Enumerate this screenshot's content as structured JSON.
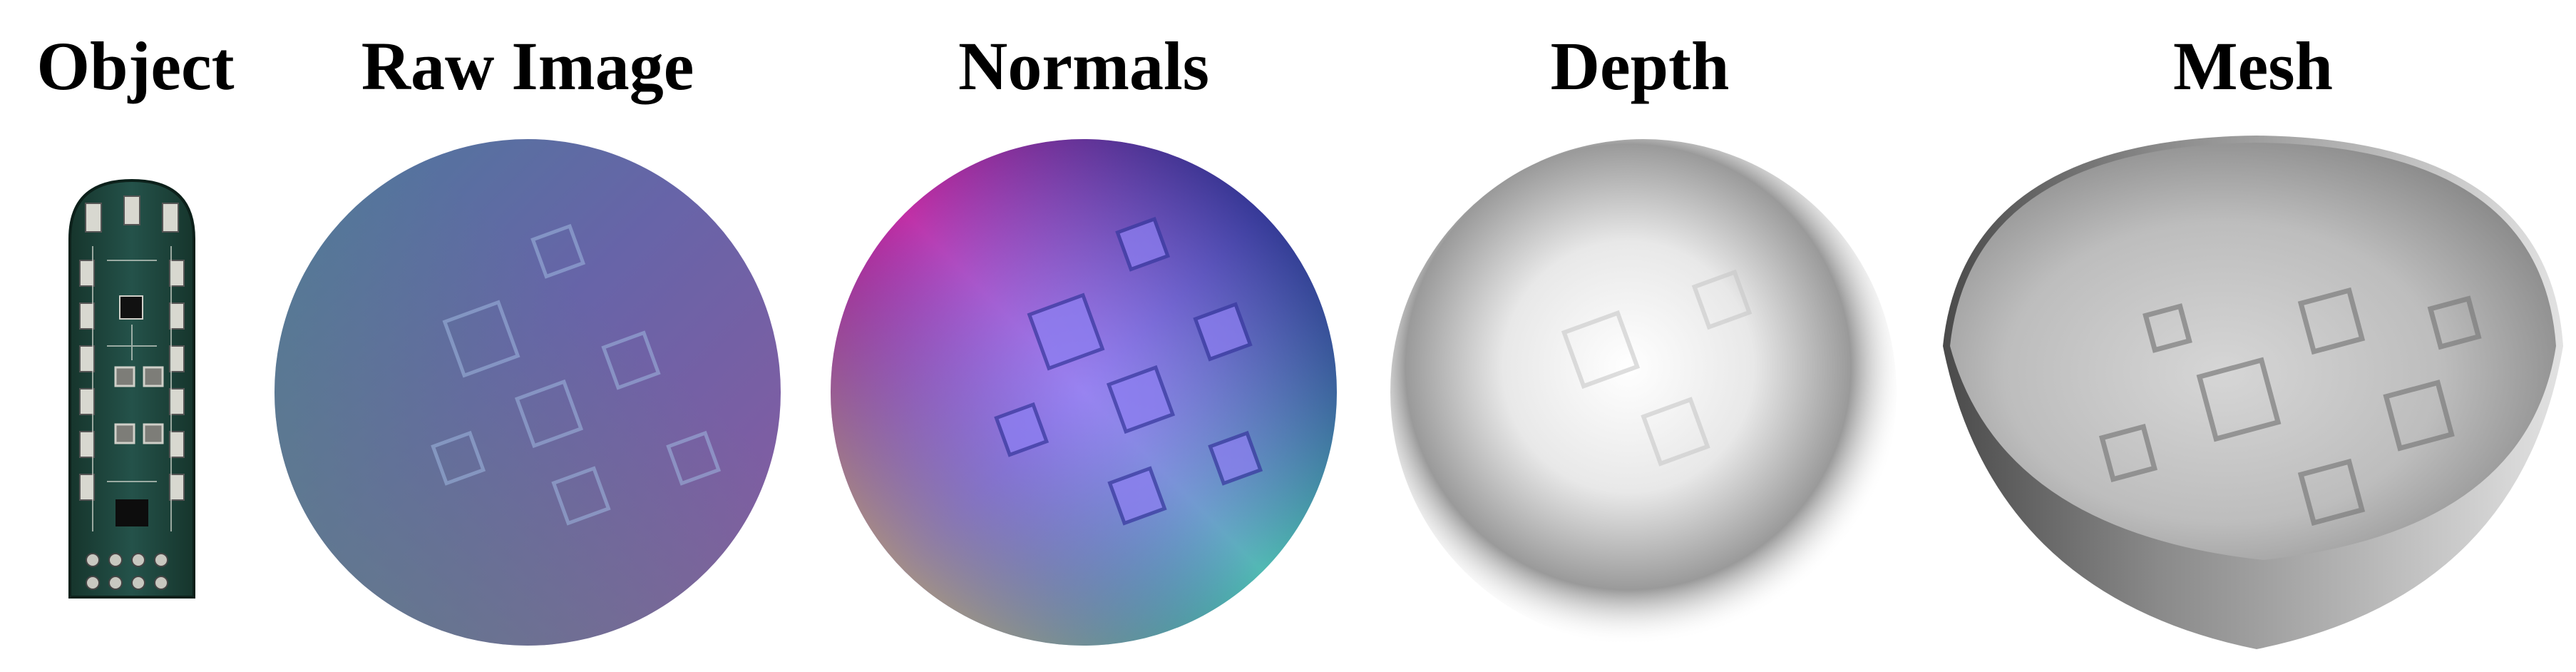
{
  "figure": {
    "titles": {
      "object": "Object",
      "raw_image": "Raw Image",
      "normals": "Normals",
      "depth": "Depth",
      "mesh": "Mesh"
    },
    "panels": [
      {
        "id": "object",
        "content": "photo of green circuit board sensor with rounded top end and connector pins at bottom"
      },
      {
        "id": "raw_image",
        "content": "circular tactile sensor raw image, blue-purple tint with embossed square imprints"
      },
      {
        "id": "normals",
        "content": "circular surface normal map, rainbow gradient (magenta top-left, navy top-right, yellow bottom-left, green bottom-right) with embossed squares"
      },
      {
        "id": "depth",
        "content": "grayscale depth map, bright center fading to gray edges with faint square imprints"
      },
      {
        "id": "mesh",
        "content": "gray shaded 3D bowl-shaped reconstructed mesh showing square bumps"
      }
    ],
    "colors": {
      "background": "#ffffff",
      "title_text": "#000000",
      "pcb_green": "#1e4a3c",
      "raw_tint": "#6f64a8",
      "depth_gray": "#8c8c8c",
      "mesh_gray": "#a8a8a8"
    }
  }
}
